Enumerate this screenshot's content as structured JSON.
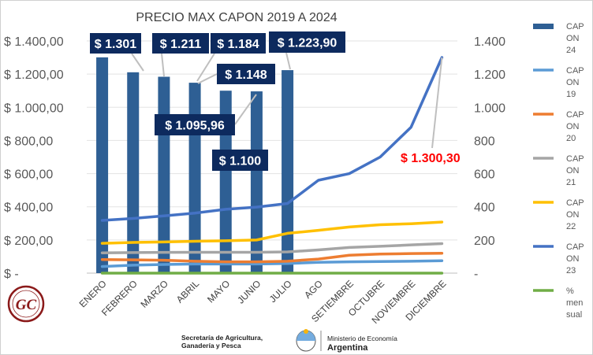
{
  "chart_data": {
    "type": "bar",
    "title": "PRECIO MAX CAPON 2019 A 2024",
    "categories": [
      "ENERO",
      "FEBRERO",
      "MARZO",
      "ABRIL",
      "MAYO",
      "JUNIO",
      "JULIO",
      "AGO",
      "SETIEMBRE",
      "OCTUBRE",
      "NOVIEMBRE",
      "DICIEMBRE"
    ],
    "y_left": {
      "min": 0,
      "max": 1400,
      "step": 200,
      "tick_labels": [
        "$ -",
        "$ 200,00",
        "$ 400,00",
        "$ 600,00",
        "$ 800,00",
        "$ 1.000,00",
        "$ 1.200,00",
        "$ 1.400,00"
      ]
    },
    "y_right": {
      "min": 0,
      "max": 1400,
      "step": 200,
      "tick_labels": [
        "-",
        "200",
        "400",
        "600",
        "800",
        "1.000",
        "1.200",
        "1.400"
      ]
    },
    "bar_series": {
      "name": "CAP ON 24",
      "color": "#2e5f94",
      "values": [
        1301,
        1211,
        1184,
        1148,
        1100,
        1095.96,
        1223.9
      ]
    },
    "line_series": [
      {
        "name": "CAP ON 19",
        "color": "#5b9bd5",
        "values": [
          40,
          48,
          52,
          55,
          55,
          55,
          58,
          65,
          68,
          70,
          72,
          75
        ]
      },
      {
        "name": "CAP ON 20",
        "color": "#ed7d31",
        "values": [
          82,
          80,
          78,
          72,
          68,
          68,
          72,
          85,
          108,
          115,
          118,
          120
        ]
      },
      {
        "name": "CAP ON 21",
        "color": "#a5a5a5",
        "values": [
          122,
          124,
          125,
          126,
          126,
          126,
          128,
          140,
          155,
          162,
          170,
          178
        ]
      },
      {
        "name": "CAP ON 22",
        "color": "#ffc000",
        "values": [
          180,
          185,
          188,
          192,
          195,
          200,
          240,
          258,
          278,
          292,
          298,
          308
        ]
      },
      {
        "name": "CAP ON 23",
        "color": "#4472c4",
        "values": [
          318,
          330,
          345,
          362,
          385,
          398,
          420,
          560,
          600,
          700,
          880,
          1300.3
        ]
      },
      {
        "name": "% mensual",
        "color": "#70ad47",
        "values": [
          0,
          0,
          0,
          0,
          0,
          0,
          0,
          0,
          0,
          0,
          0,
          0
        ]
      }
    ],
    "data_labels": [
      {
        "text": "$ 1.301",
        "series": "CAP ON 24",
        "category": "ENERO"
      },
      {
        "text": "$ 1.211",
        "series": "CAP ON 24",
        "category": "FEBRERO"
      },
      {
        "text": "$ 1.184",
        "series": "CAP ON 24",
        "category": "MARZO"
      },
      {
        "text": "$ 1.148",
        "series": "CAP ON 24",
        "category": "ABRIL"
      },
      {
        "text": "$ 1.100",
        "series": "CAP ON 24",
        "category": "MAYO"
      },
      {
        "text": "$ 1.095,96",
        "series": "CAP ON 24",
        "category": "JUNIO"
      },
      {
        "text": "$ 1.223,90",
        "series": "CAP ON 24",
        "category": "JULIO"
      },
      {
        "text": "$ 1.300,30",
        "series": "CAP ON 23",
        "category": "DICIEMBRE"
      }
    ],
    "legend": {
      "placement": "right",
      "entries": [
        {
          "lines": [
            "CAP",
            "ON",
            "24"
          ],
          "color": "#2e5f94",
          "kind": "bar"
        },
        {
          "lines": [
            "CAP",
            "ON",
            "19"
          ],
          "color": "#5b9bd5",
          "kind": "line"
        },
        {
          "lines": [
            "CAP",
            "ON",
            "20"
          ],
          "color": "#ed7d31",
          "kind": "line"
        },
        {
          "lines": [
            "CAP",
            "ON",
            "21"
          ],
          "color": "#a5a5a5",
          "kind": "line"
        },
        {
          "lines": [
            "CAP",
            "ON",
            "22"
          ],
          "color": "#ffc000",
          "kind": "line"
        },
        {
          "lines": [
            "CAP",
            "ON",
            "23"
          ],
          "color": "#4472c4",
          "kind": "line"
        },
        {
          "lines": [
            "%",
            "men",
            "sual"
          ],
          "color": "#70ad47",
          "kind": "line"
        }
      ]
    },
    "grid": true
  },
  "logo": {
    "text": "GC",
    "color": "#8b1a1a"
  },
  "footer": {
    "left_line1": "Secretaría de Agricultura,",
    "left_line2": "Ganadería y Pesca",
    "right_line1": "Ministerio de Economía",
    "right_line2": "Argentina"
  }
}
